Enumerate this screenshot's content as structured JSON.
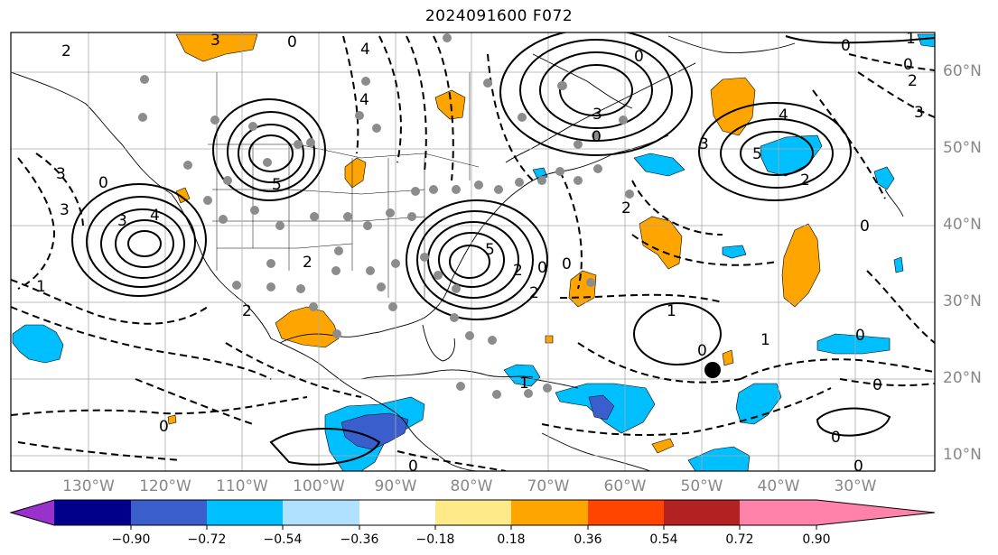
{
  "title": "2024091600 F072",
  "lat_labels": [
    "60°N",
    "50°N",
    "40°N",
    "30°N",
    "20°N",
    "10°N"
  ],
  "lon_labels": [
    "130°W",
    "120°W",
    "110°W",
    "100°W",
    "90°W",
    "80°W",
    "70°W",
    "60°W",
    "50°W",
    "40°W",
    "30°W"
  ],
  "colorbar": {
    "ticks": [
      "−0.90",
      "−0.72",
      "−0.54",
      "−0.36",
      "−0.18",
      "0.18",
      "0.36",
      "0.54",
      "0.72",
      "0.90"
    ],
    "colors": [
      "#9932cc",
      "#00008b",
      "#3a5fcd",
      "#00bfff",
      "#b0e2ff",
      "#ffffff",
      "#ffea8a",
      "#ffa500",
      "#ff4500",
      "#b22222",
      "#ff82ab"
    ]
  },
  "contour_labels": [
    "2",
    "3",
    "0",
    "0",
    "0",
    "1",
    "4",
    "3",
    "3",
    "3",
    "4",
    "0",
    "5",
    "2",
    "3",
    "4",
    "5",
    "0",
    "1",
    "1",
    "2",
    "2",
    "3",
    "4",
    "2",
    "0",
    "3",
    "2",
    "2",
    "0",
    "0",
    "1",
    "0",
    "0",
    "0",
    "1",
    "0",
    "0",
    "0",
    "0",
    "0",
    "2",
    "5"
  ],
  "fill_colors": {
    "positive": "#ffa500",
    "negative_light": "#00bfff",
    "negative_strong": "#3a5fcd"
  }
}
